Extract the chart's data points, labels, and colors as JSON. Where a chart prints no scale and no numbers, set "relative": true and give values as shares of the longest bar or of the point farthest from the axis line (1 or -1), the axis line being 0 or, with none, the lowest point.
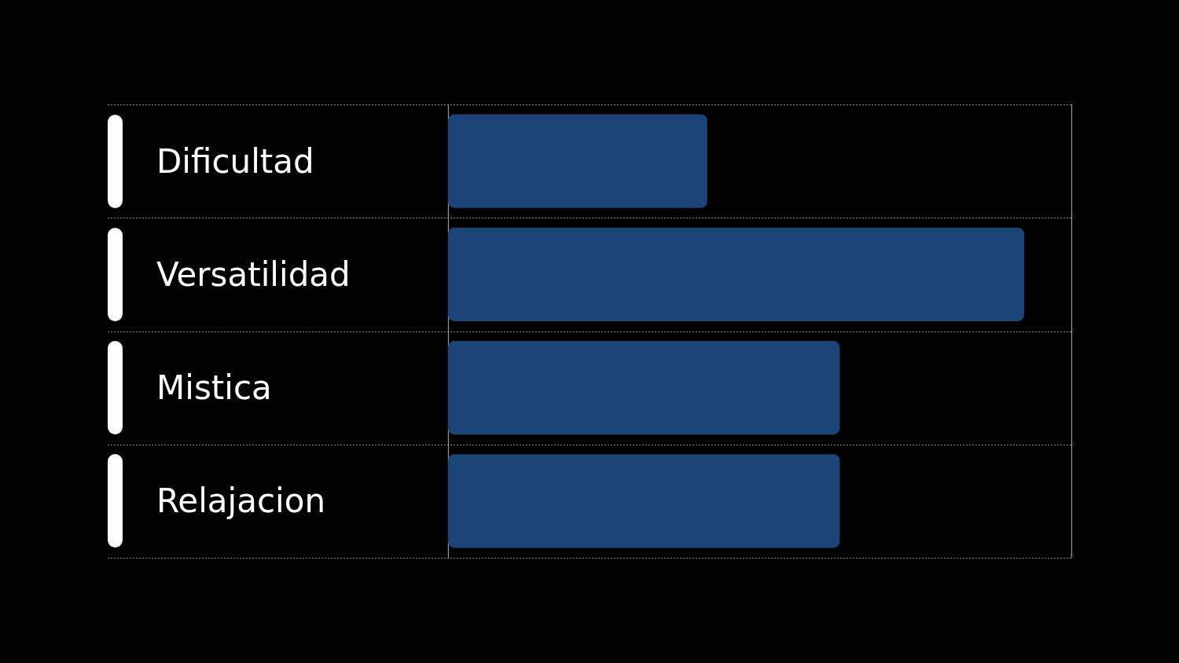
{
  "chart_data": {
    "type": "bar",
    "orientation": "horizontal",
    "relative": true,
    "grid": "y",
    "categories": [
      "Dificultad",
      "Versatilidad",
      "Mistica",
      "Relajacion"
    ],
    "values": [
      0.45,
      1,
      0.68,
      0.68
    ],
    "color": "#1d4477"
  }
}
